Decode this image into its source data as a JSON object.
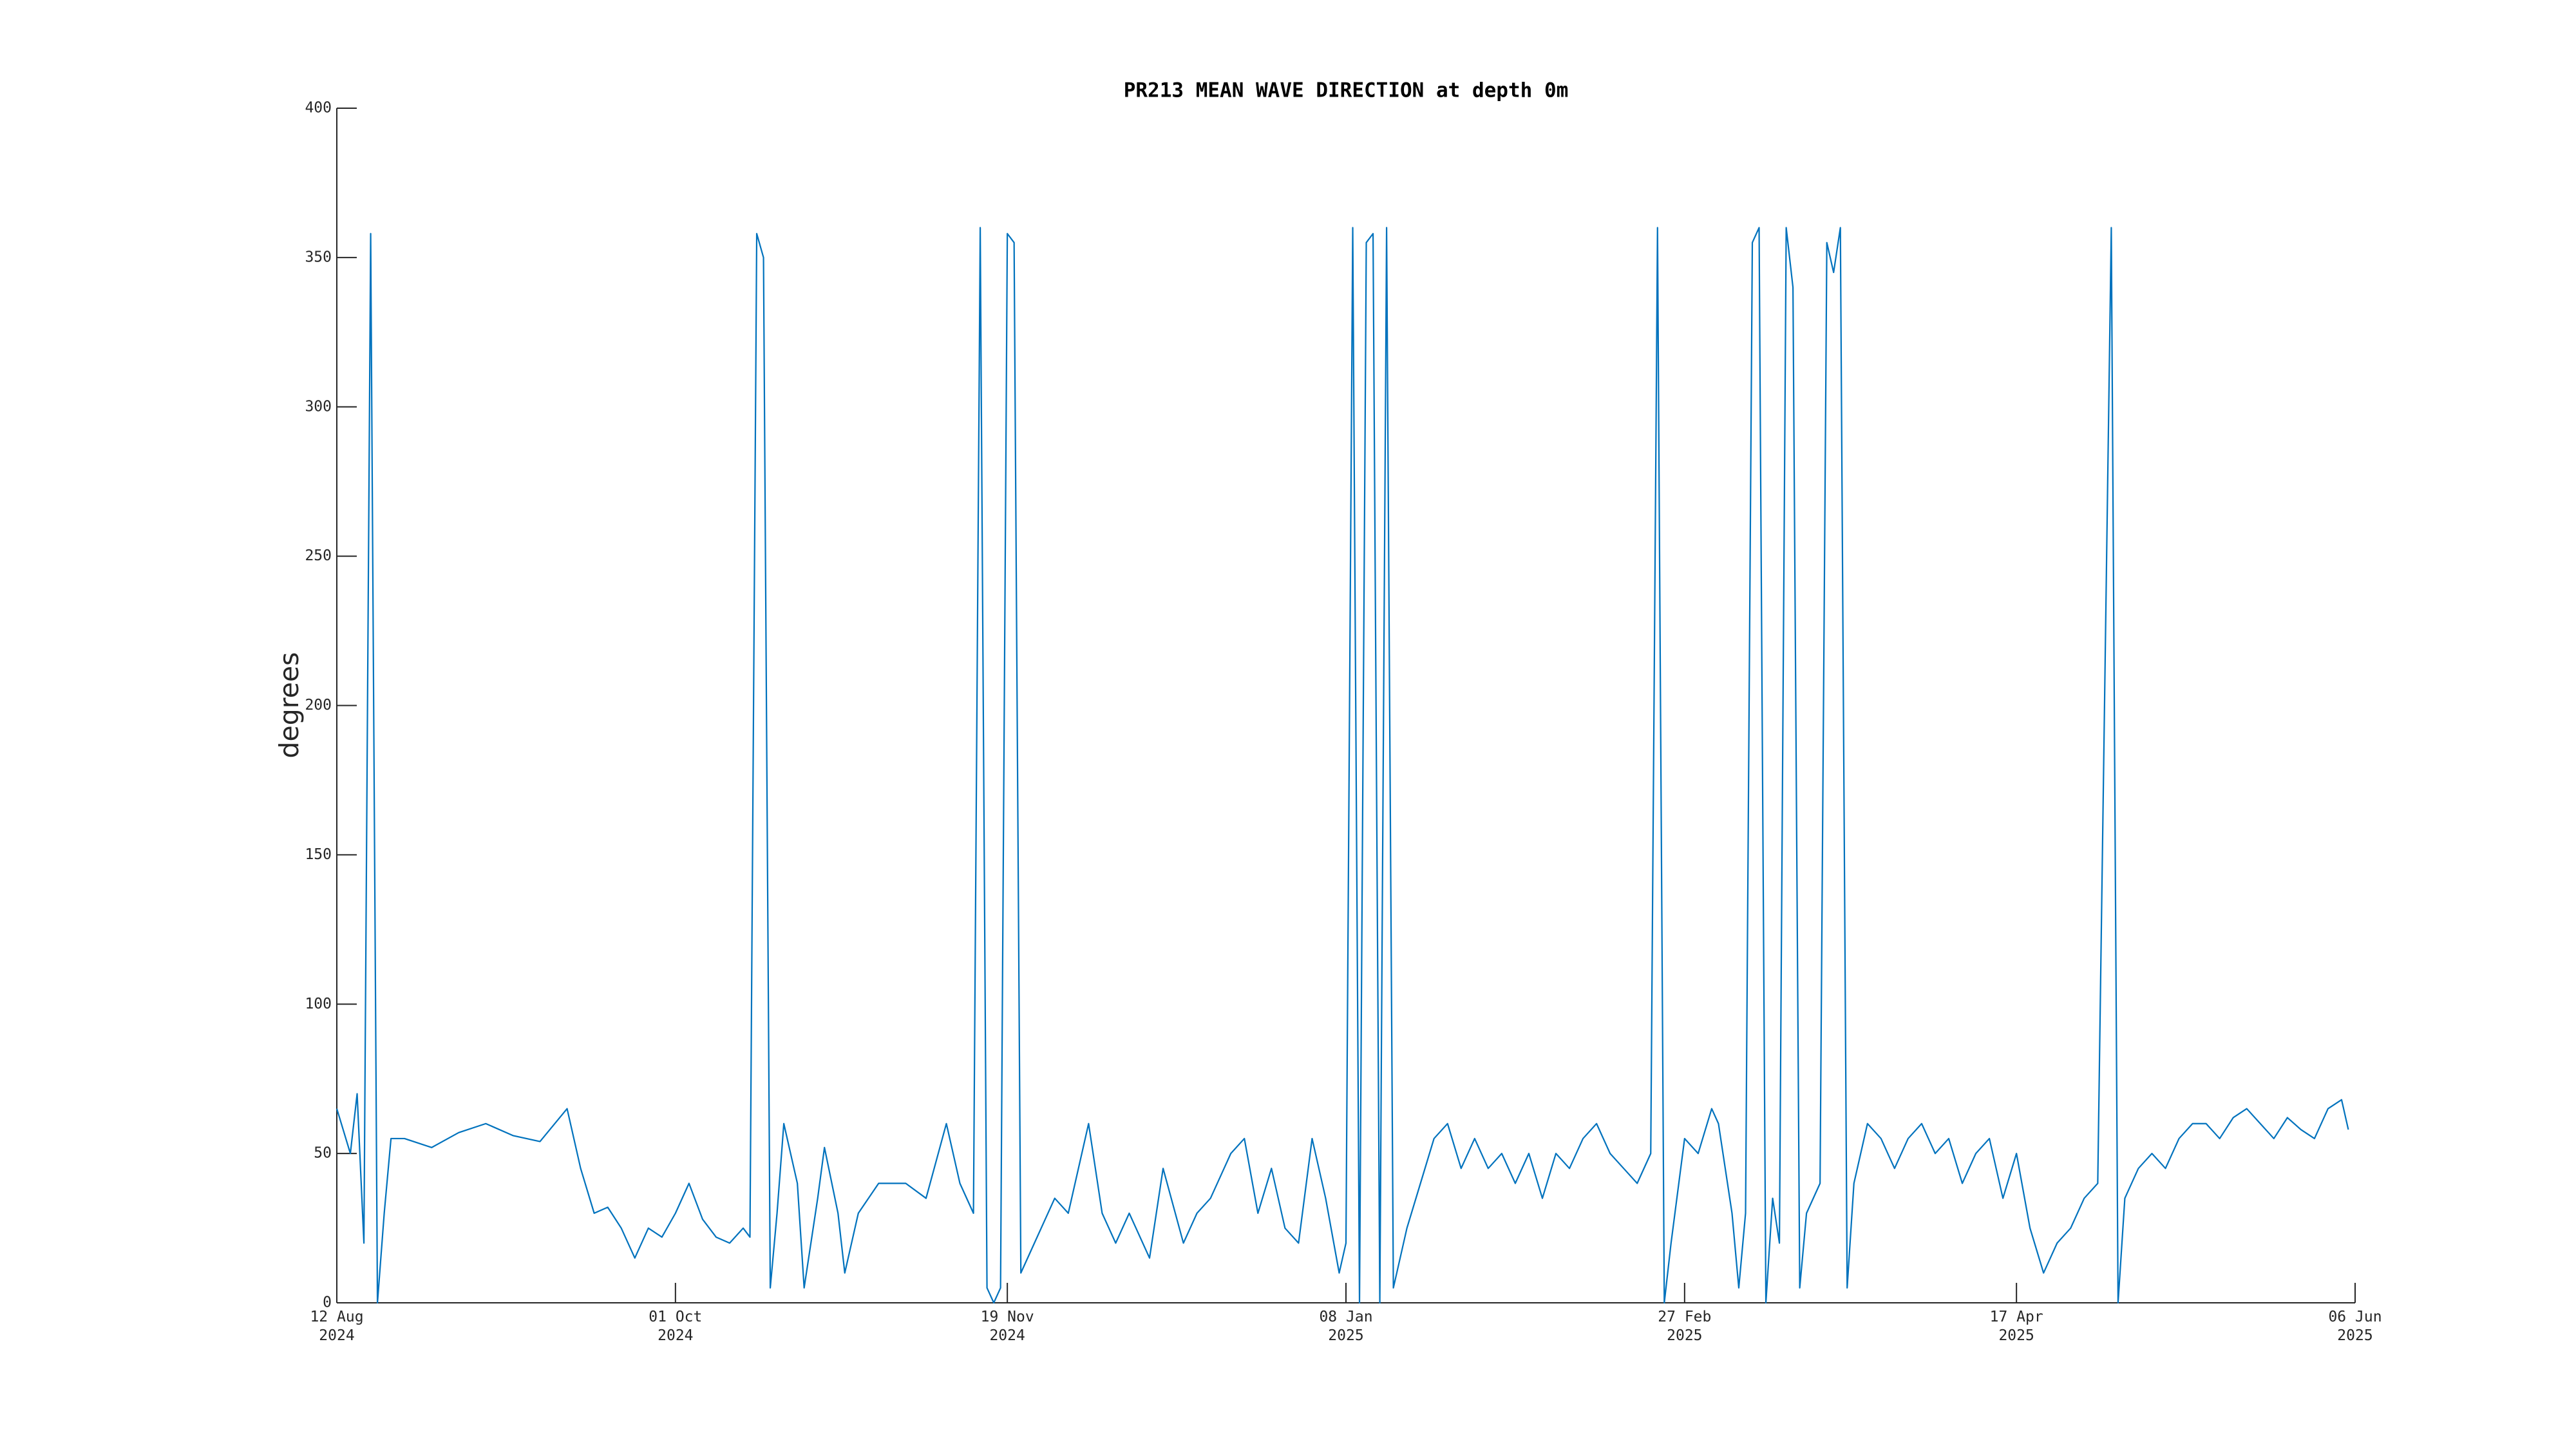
{
  "chart_data": {
    "type": "line",
    "title": "PR213 MEAN WAVE DIRECTION at depth 0m",
    "y_label": "degrees",
    "xlim": [
      "2024-08-12",
      "2025-06-06"
    ],
    "xticks": [
      {
        "value": "2024-08-12",
        "label": "12 Aug\n2024"
      },
      {
        "value": "2024-10-01",
        "label": "01 Oct\n2024"
      },
      {
        "value": "2024-11-19",
        "label": "19 Nov\n2024"
      },
      {
        "value": "2025-01-08",
        "label": "08 Jan\n2025"
      },
      {
        "value": "2025-02-27",
        "label": "27 Feb\n2025"
      },
      {
        "value": "2025-04-17",
        "label": "17 Apr\n2025"
      },
      {
        "value": "2025-06-06",
        "label": "06 Jun\n2025"
      }
    ],
    "ylim": [
      0,
      400
    ],
    "yticks": [
      0,
      50,
      100,
      150,
      200,
      250,
      300,
      350,
      400
    ],
    "grid": false,
    "x": [
      "2024-08-12",
      "2024-08-14",
      "2024-08-15",
      "2024-08-16",
      "2024-08-17",
      "2024-08-18",
      "2024-08-19",
      "2024-08-20",
      "2024-08-22",
      "2024-08-26",
      "2024-08-30",
      "2024-09-03",
      "2024-09-07",
      "2024-09-11",
      "2024-09-15",
      "2024-09-17",
      "2024-09-19",
      "2024-09-21",
      "2024-09-23",
      "2024-09-25",
      "2024-09-27",
      "2024-09-29",
      "2024-10-01",
      "2024-10-03",
      "2024-10-05",
      "2024-10-07",
      "2024-10-09",
      "2024-10-11",
      "2024-10-12",
      "2024-10-13",
      "2024-10-14",
      "2024-10-15",
      "2024-10-16",
      "2024-10-17",
      "2024-10-19",
      "2024-10-20",
      "2024-10-22",
      "2024-10-23",
      "2024-10-25",
      "2024-10-26",
      "2024-10-28",
      "2024-10-31",
      "2024-11-04",
      "2024-11-07",
      "2024-11-10",
      "2024-11-12",
      "2024-11-14",
      "2024-11-15",
      "2024-11-16",
      "2024-11-17",
      "2024-11-18",
      "2024-11-19",
      "2024-11-20",
      "2024-11-21",
      "2024-11-23",
      "2024-11-26",
      "2024-11-28",
      "2024-12-01",
      "2024-12-03",
      "2024-12-05",
      "2024-12-07",
      "2024-12-10",
      "2024-12-12",
      "2024-12-15",
      "2024-12-17",
      "2024-12-19",
      "2024-12-22",
      "2024-12-24",
      "2024-12-26",
      "2024-12-28",
      "2024-12-30",
      "2025-01-01",
      "2025-01-03",
      "2025-01-05",
      "2025-01-07",
      "2025-01-08",
      "2025-01-09",
      "2025-01-10",
      "2025-01-11",
      "2025-01-12",
      "2025-01-13",
      "2025-01-14",
      "2025-01-15",
      "2025-01-17",
      "2025-01-19",
      "2025-01-21",
      "2025-01-23",
      "2025-01-25",
      "2025-01-27",
      "2025-01-29",
      "2025-01-31",
      "2025-02-02",
      "2025-02-04",
      "2025-02-06",
      "2025-02-08",
      "2025-02-10",
      "2025-02-12",
      "2025-02-14",
      "2025-02-16",
      "2025-02-18",
      "2025-02-20",
      "2025-02-22",
      "2025-02-23",
      "2025-02-24",
      "2025-02-25",
      "2025-02-27",
      "2025-03-01",
      "2025-03-03",
      "2025-03-04",
      "2025-03-06",
      "2025-03-07",
      "2025-03-08",
      "2025-03-09",
      "2025-03-10",
      "2025-03-11",
      "2025-03-12",
      "2025-03-13",
      "2025-03-14",
      "2025-03-15",
      "2025-03-16",
      "2025-03-17",
      "2025-03-19",
      "2025-03-20",
      "2025-03-21",
      "2025-03-22",
      "2025-03-23",
      "2025-03-24",
      "2025-03-26",
      "2025-03-28",
      "2025-03-30",
      "2025-04-01",
      "2025-04-03",
      "2025-04-05",
      "2025-04-07",
      "2025-04-09",
      "2025-04-11",
      "2025-04-13",
      "2025-04-15",
      "2025-04-17",
      "2025-04-19",
      "2025-04-21",
      "2025-04-23",
      "2025-04-25",
      "2025-04-27",
      "2025-04-29",
      "2025-05-01",
      "2025-05-02",
      "2025-05-03",
      "2025-05-05",
      "2025-05-07",
      "2025-05-09",
      "2025-05-11",
      "2025-05-13",
      "2025-05-15",
      "2025-05-17",
      "2025-05-19",
      "2025-05-21",
      "2025-05-23",
      "2025-05-25",
      "2025-05-27",
      "2025-05-29",
      "2025-05-31",
      "2025-06-02",
      "2025-06-04",
      "2025-06-05"
    ],
    "series": [
      {
        "color": "#0072bd",
        "values": [
          65,
          50,
          70,
          20,
          358,
          0,
          30,
          55,
          55,
          52,
          57,
          60,
          56,
          54,
          65,
          45,
          30,
          32,
          25,
          15,
          25,
          22,
          30,
          40,
          28,
          22,
          20,
          25,
          22,
          358,
          350,
          5,
          30,
          60,
          40,
          5,
          35,
          52,
          30,
          10,
          30,
          40,
          40,
          35,
          60,
          40,
          30,
          360,
          5,
          0,
          5,
          358,
          355,
          10,
          20,
          35,
          30,
          60,
          30,
          20,
          30,
          15,
          45,
          20,
          30,
          35,
          50,
          55,
          30,
          45,
          25,
          20,
          55,
          35,
          10,
          20,
          360,
          0,
          355,
          358,
          0,
          360,
          5,
          25,
          40,
          55,
          60,
          45,
          55,
          45,
          50,
          40,
          50,
          35,
          50,
          45,
          55,
          60,
          50,
          45,
          40,
          50,
          360,
          0,
          20,
          55,
          50,
          65,
          60,
          30,
          5,
          30,
          355,
          360,
          0,
          35,
          20,
          360,
          340,
          5,
          30,
          40,
          355,
          345,
          360,
          5,
          40,
          60,
          55,
          45,
          55,
          60,
          50,
          55,
          40,
          50,
          55,
          35,
          50,
          25,
          10,
          20,
          25,
          35,
          40,
          360,
          0,
          35,
          45,
          50,
          45,
          55,
          60,
          60,
          55,
          62,
          65,
          60,
          55,
          62,
          58,
          55,
          65,
          68,
          58
        ]
      }
    ]
  }
}
